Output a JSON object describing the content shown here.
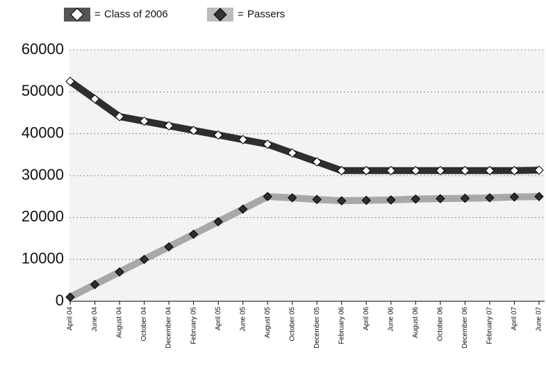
{
  "chart_data": {
    "type": "line",
    "categories": [
      "April 04",
      "June 04",
      "August 04",
      "October 04",
      "December 04",
      "February 05",
      "April 05",
      "June 05",
      "August 05",
      "October 05",
      "December 05",
      "February 06",
      "April 06",
      "June 06",
      "August 06",
      "October 06",
      "December 06",
      "February 07",
      "April 07",
      "June 07"
    ],
    "series": [
      {
        "name": "Class of 2006",
        "color": "#2e2e2e",
        "marker_color": "#ffffff",
        "values": [
          52500,
          48300,
          44100,
          43000,
          41900,
          40800,
          39700,
          38600,
          37500,
          35400,
          33300,
          31200,
          31200,
          31200,
          31200,
          31200,
          31200,
          31200,
          31200,
          31300
        ]
      },
      {
        "name": "Passers",
        "color": "#a8a8a8",
        "marker_color": "#2e2e2e",
        "values": [
          1000,
          4000,
          7000,
          10000,
          13000,
          16000,
          19000,
          22000,
          25000,
          24700,
          24300,
          24000,
          24100,
          24200,
          24400,
          24500,
          24600,
          24700,
          24900,
          25000
        ]
      }
    ],
    "ylim": [
      0,
      60000
    ],
    "yticks": [
      0,
      10000,
      20000,
      30000,
      40000,
      50000,
      60000
    ],
    "grid": true
  }
}
